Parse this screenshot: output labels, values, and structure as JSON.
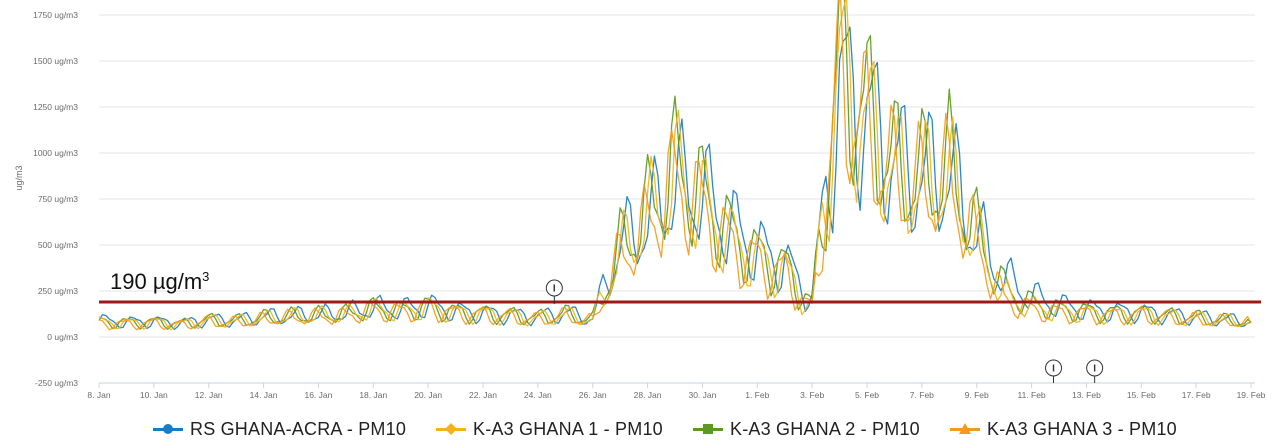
{
  "chart_data": {
    "type": "line",
    "title": "",
    "xlabel": "",
    "ylabel": "ug/m3",
    "ylim": [
      -250,
      1750
    ],
    "y_ticks": [
      {
        "value": 1750,
        "label": "1750 ug/m3"
      },
      {
        "value": 1500,
        "label": "1500 ug/m3"
      },
      {
        "value": 1250,
        "label": "1250 ug/m3"
      },
      {
        "value": 1000,
        "label": "1000 ug/m3"
      },
      {
        "value": 750,
        "label": "750 ug/m3"
      },
      {
        "value": 500,
        "label": "500 ug/m3"
      },
      {
        "value": 250,
        "label": "250 ug/m3"
      },
      {
        "value": 0,
        "label": "0 ug/m3"
      },
      {
        "value": -250,
        "label": "-250 ug/m3"
      }
    ],
    "x_ticks": [
      "8. Jan",
      "10. Jan",
      "12. Jan",
      "14. Jan",
      "16. Jan",
      "18. Jan",
      "20. Jan",
      "22. Jan",
      "24. Jan",
      "26. Jan",
      "28. Jan",
      "30. Jan",
      "1. Feb",
      "3. Feb",
      "5. Feb",
      "7. Feb",
      "9. Feb",
      "11. Feb",
      "13. Feb",
      "15. Feb",
      "17. Feb",
      "19. Feb"
    ],
    "grid": true,
    "legend_position": "bottom",
    "threshold": {
      "value": 190,
      "label": "190 µg/m",
      "label_sup": "3",
      "color": "#a01818"
    },
    "event_markers": [
      {
        "date": "24.6 Jan",
        "glyph": "I",
        "position": "top"
      },
      {
        "date": "10.8 Feb",
        "glyph": "I",
        "position": "bottom"
      },
      {
        "date": "12.3 Feb",
        "glyph": "I",
        "position": "bottom"
      }
    ],
    "x": [
      "8 Jan",
      "9 Jan",
      "10 Jan",
      "11 Jan",
      "12 Jan",
      "13 Jan",
      "14 Jan",
      "15 Jan",
      "16 Jan",
      "17 Jan",
      "18 Jan",
      "19 Jan",
      "20 Jan",
      "21 Jan",
      "22 Jan",
      "23 Jan",
      "24 Jan",
      "25 Jan",
      "26 Jan",
      "27 Jan",
      "28 Jan",
      "29 Jan",
      "30 Jan",
      "31 Jan",
      "1 Feb",
      "2 Feb",
      "3 Feb",
      "4 Feb",
      "5 Feb",
      "6 Feb",
      "7 Feb",
      "8 Feb",
      "9 Feb",
      "10 Feb",
      "11 Feb",
      "12 Feb",
      "13 Feb",
      "14 Feb",
      "15 Feb",
      "16 Feb",
      "17 Feb",
      "18 Feb",
      "19 Feb"
    ],
    "series": [
      {
        "name": "RS GHANA-ACRA - PM10",
        "color": "#1a7dc4",
        "marker": "circle",
        "values": [
          90,
          80,
          85,
          75,
          95,
          90,
          110,
          115,
          120,
          130,
          160,
          150,
          170,
          140,
          130,
          120,
          110,
          130,
          100,
          500,
          620,
          820,
          780,
          600,
          470,
          400,
          210,
          1350,
          1200,
          950,
          870,
          880,
          560,
          320,
          220,
          170,
          150,
          140,
          135,
          120,
          110,
          95,
          85
        ]
      },
      {
        "name": "K-A3 GHANA 1 - PM10",
        "color": "#f2b418",
        "marker": "diamond",
        "values": [
          80,
          75,
          80,
          70,
          90,
          85,
          100,
          110,
          115,
          120,
          150,
          140,
          160,
          130,
          125,
          115,
          100,
          120,
          90,
          450,
          640,
          870,
          720,
          520,
          420,
          360,
          150,
          1450,
          1150,
          880,
          820,
          860,
          520,
          220,
          160,
          140,
          130,
          120,
          125,
          110,
          100,
          90,
          80
        ]
      },
      {
        "name": "K-A3 GHANA 2 - PM10",
        "color": "#5b9a1a",
        "marker": "square",
        "values": [
          85,
          78,
          82,
          72,
          92,
          88,
          105,
          112,
          118,
          125,
          155,
          145,
          165,
          135,
          128,
          118,
          105,
          125,
          95,
          480,
          680,
          920,
          760,
          560,
          440,
          380,
          170,
          1500,
          1200,
          920,
          860,
          920,
          560,
          260,
          180,
          150,
          140,
          130,
          130,
          115,
          105,
          92,
          82
        ]
      },
      {
        "name": "K-A3 GHANA 3 - PM10",
        "color": "#f59a1b",
        "marker": "triangle",
        "values": [
          75,
          70,
          75,
          65,
          85,
          80,
          95,
          105,
          110,
          115,
          145,
          135,
          155,
          125,
          120,
          110,
          95,
          115,
          85,
          430,
          600,
          840,
          700,
          500,
          400,
          340,
          140,
          1400,
          1100,
          860,
          800,
          840,
          500,
          200,
          150,
          130,
          125,
          115,
          120,
          105,
          95,
          85,
          75
        ]
      }
    ]
  }
}
